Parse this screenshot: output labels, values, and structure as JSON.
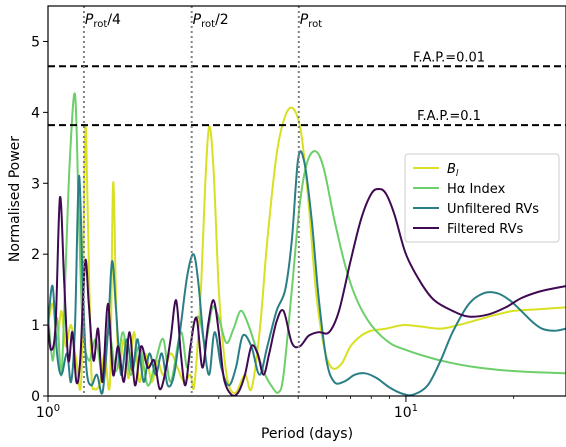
{
  "chart_data": {
    "type": "line",
    "xlabel": "Period (days)",
    "ylabel": "Normalised Power",
    "xscale": "log",
    "xlim": [
      1.0,
      28.0
    ],
    "ylim": [
      0,
      5.5
    ],
    "grid": false,
    "legend_position": "right",
    "x_major_ticks": [
      {
        "value": 1,
        "base": "10",
        "exp": "0"
      },
      {
        "value": 10,
        "base": "10",
        "exp": "1"
      }
    ],
    "y_ticks": [
      0,
      1,
      2,
      3,
      4,
      5
    ],
    "fap_lines": [
      {
        "label": "F.A.P.=0.01",
        "value": 4.65
      },
      {
        "label": "F.A.P.=0.1",
        "value": 3.82
      }
    ],
    "period_markers": [
      {
        "label_symbol": "P",
        "label_sub": "rot",
        "label_suffix": "/4",
        "value": 1.26
      },
      {
        "label_symbol": "P",
        "label_sub": "rot",
        "label_suffix": "/2",
        "value": 2.52
      },
      {
        "label_symbol": "P",
        "label_sub": "rot",
        "label_suffix": "",
        "value": 5.02
      }
    ],
    "series": [
      {
        "name": "B",
        "name_sub": "l",
        "color": "#d9e021",
        "points": [
          [
            1.0,
            1.0
          ],
          [
            1.03,
            1.3
          ],
          [
            1.06,
            0.8
          ],
          [
            1.09,
            1.2
          ],
          [
            1.12,
            0.7
          ],
          [
            1.16,
            1.0
          ],
          [
            1.2,
            0.5
          ],
          [
            1.24,
            0.3
          ],
          [
            1.27,
            3.7
          ],
          [
            1.29,
            2.7
          ],
          [
            1.32,
            0.4
          ],
          [
            1.35,
            0.1
          ],
          [
            1.4,
            0.2
          ],
          [
            1.44,
            0.6
          ],
          [
            1.49,
            0.2
          ],
          [
            1.52,
            3.0
          ],
          [
            1.55,
            1.3
          ],
          [
            1.58,
            0.4
          ],
          [
            1.63,
            0.8
          ],
          [
            1.68,
            0.25
          ],
          [
            1.74,
            0.9
          ],
          [
            1.8,
            0.2
          ],
          [
            1.87,
            0.6
          ],
          [
            1.95,
            0.2
          ],
          [
            2.02,
            0.5
          ],
          [
            2.1,
            0.3
          ],
          [
            2.2,
            0.6
          ],
          [
            2.3,
            0.4
          ],
          [
            2.4,
            0.2
          ],
          [
            2.5,
            0.3
          ],
          [
            2.55,
            0.1
          ],
          [
            2.6,
            0.5
          ],
          [
            2.68,
            1.6
          ],
          [
            2.75,
            3.0
          ],
          [
            2.82,
            3.8
          ],
          [
            2.9,
            3.2
          ],
          [
            3.0,
            1.5
          ],
          [
            3.1,
            0.6
          ],
          [
            3.2,
            0.15
          ],
          [
            3.35,
            0.05
          ],
          [
            3.55,
            0.3
          ],
          [
            3.7,
            0.1
          ],
          [
            3.9,
            0.9
          ],
          [
            4.1,
            2.2
          ],
          [
            4.35,
            3.4
          ],
          [
            4.6,
            3.95
          ],
          [
            4.85,
            4.05
          ],
          [
            5.1,
            3.7
          ],
          [
            5.35,
            2.7
          ],
          [
            5.6,
            1.5
          ],
          [
            5.9,
            0.7
          ],
          [
            6.2,
            0.4
          ],
          [
            6.6,
            0.45
          ],
          [
            7.0,
            0.7
          ],
          [
            7.5,
            0.85
          ],
          [
            8.0,
            0.92
          ],
          [
            8.8,
            0.95
          ],
          [
            9.8,
            1.0
          ],
          [
            11.0,
            0.98
          ],
          [
            12.5,
            0.95
          ],
          [
            14.0,
            1.0
          ],
          [
            16.0,
            1.08
          ],
          [
            18.0,
            1.15
          ],
          [
            20.0,
            1.2
          ],
          [
            23.0,
            1.22
          ],
          [
            26.0,
            1.24
          ],
          [
            28.0,
            1.25
          ]
        ]
      },
      {
        "name": "Hα Index",
        "color": "#6ccf6a",
        "points": [
          [
            1.0,
            1.2
          ],
          [
            1.03,
            0.5
          ],
          [
            1.06,
            1.1
          ],
          [
            1.09,
            0.3
          ],
          [
            1.12,
            1.8
          ],
          [
            1.15,
            3.3
          ],
          [
            1.19,
            4.25
          ],
          [
            1.22,
            2.5
          ],
          [
            1.25,
            1.0
          ],
          [
            1.3,
            0.5
          ],
          [
            1.36,
            0.8
          ],
          [
            1.42,
            0.3
          ],
          [
            1.48,
            0.9
          ],
          [
            1.55,
            0.35
          ],
          [
            1.62,
            0.9
          ],
          [
            1.7,
            0.3
          ],
          [
            1.8,
            0.7
          ],
          [
            1.9,
            0.15
          ],
          [
            2.0,
            0.5
          ],
          [
            2.1,
            0.8
          ],
          [
            2.2,
            0.2
          ],
          [
            2.35,
            0.9
          ],
          [
            2.45,
            0.4
          ],
          [
            2.55,
            1.0
          ],
          [
            2.65,
            1.1
          ],
          [
            2.75,
            0.75
          ],
          [
            2.88,
            1.25
          ],
          [
            3.0,
            1.1
          ],
          [
            3.15,
            0.75
          ],
          [
            3.3,
            0.95
          ],
          [
            3.45,
            1.2
          ],
          [
            3.6,
            1.05
          ],
          [
            3.8,
            0.7
          ],
          [
            4.0,
            0.35
          ],
          [
            4.2,
            0.15
          ],
          [
            4.4,
            0.05
          ],
          [
            4.55,
            0.3
          ],
          [
            4.8,
            1.5
          ],
          [
            5.05,
            2.7
          ],
          [
            5.3,
            3.3
          ],
          [
            5.6,
            3.45
          ],
          [
            5.9,
            3.2
          ],
          [
            6.3,
            2.5
          ],
          [
            6.8,
            1.8
          ],
          [
            7.3,
            1.35
          ],
          [
            8.0,
            1.0
          ],
          [
            9.0,
            0.75
          ],
          [
            10.0,
            0.65
          ],
          [
            11.5,
            0.55
          ],
          [
            13.0,
            0.48
          ],
          [
            15.0,
            0.42
          ],
          [
            18.0,
            0.37
          ],
          [
            22.0,
            0.34
          ],
          [
            28.0,
            0.32
          ]
        ]
      },
      {
        "name": "Unfiltered RVs",
        "color": "#2a7f86",
        "points": [
          [
            1.0,
            1.0
          ],
          [
            1.03,
            1.55
          ],
          [
            1.06,
            0.6
          ],
          [
            1.09,
            0.3
          ],
          [
            1.13,
            0.6
          ],
          [
            1.16,
            0.2
          ],
          [
            1.19,
            1.0
          ],
          [
            1.22,
            3.1
          ],
          [
            1.25,
            1.6
          ],
          [
            1.28,
            0.4
          ],
          [
            1.32,
            0.15
          ],
          [
            1.37,
            0.3
          ],
          [
            1.42,
            0.05
          ],
          [
            1.47,
            0.9
          ],
          [
            1.51,
            1.9
          ],
          [
            1.55,
            1.2
          ],
          [
            1.6,
            0.3
          ],
          [
            1.66,
            0.8
          ],
          [
            1.72,
            0.35
          ],
          [
            1.78,
            0.8
          ],
          [
            1.85,
            0.2
          ],
          [
            1.92,
            0.6
          ],
          [
            2.0,
            0.3
          ],
          [
            2.08,
            0.6
          ],
          [
            2.16,
            0.15
          ],
          [
            2.25,
            0.3
          ],
          [
            2.35,
            1.0
          ],
          [
            2.45,
            1.7
          ],
          [
            2.55,
            2.0
          ],
          [
            2.63,
            1.6
          ],
          [
            2.72,
            0.8
          ],
          [
            2.82,
            0.3
          ],
          [
            2.92,
            0.9
          ],
          [
            3.05,
            0.4
          ],
          [
            3.2,
            0.15
          ],
          [
            3.35,
            0.4
          ],
          [
            3.5,
            0.85
          ],
          [
            3.7,
            0.7
          ],
          [
            3.9,
            0.3
          ],
          [
            4.1,
            0.7
          ],
          [
            4.35,
            1.2
          ],
          [
            4.6,
            1.5
          ],
          [
            4.8,
            2.2
          ],
          [
            5.0,
            3.35
          ],
          [
            5.2,
            3.3
          ],
          [
            5.45,
            2.5
          ],
          [
            5.7,
            1.4
          ],
          [
            6.0,
            0.5
          ],
          [
            6.3,
            0.2
          ],
          [
            6.7,
            0.2
          ],
          [
            7.2,
            0.3
          ],
          [
            7.7,
            0.32
          ],
          [
            8.3,
            0.25
          ],
          [
            9.0,
            0.12
          ],
          [
            9.8,
            0.03
          ],
          [
            10.5,
            0.02
          ],
          [
            11.5,
            0.15
          ],
          [
            12.5,
            0.5
          ],
          [
            13.5,
            0.9
          ],
          [
            15.0,
            1.3
          ],
          [
            16.5,
            1.45
          ],
          [
            18.0,
            1.45
          ],
          [
            19.5,
            1.35
          ],
          [
            21.0,
            1.2
          ],
          [
            22.5,
            1.05
          ],
          [
            24.0,
            0.95
          ],
          [
            26.0,
            0.92
          ],
          [
            28.0,
            0.95
          ]
        ]
      },
      {
        "name": "Filtered RVs",
        "color": "#3f0a52",
        "points": [
          [
            1.0,
            1.0
          ],
          [
            1.02,
            0.65
          ],
          [
            1.05,
            1.0
          ],
          [
            1.08,
            2.8
          ],
          [
            1.11,
            1.6
          ],
          [
            1.14,
            0.5
          ],
          [
            1.17,
            0.9
          ],
          [
            1.2,
            0.2
          ],
          [
            1.23,
            0.5
          ],
          [
            1.27,
            1.9
          ],
          [
            1.3,
            1.3
          ],
          [
            1.34,
            0.5
          ],
          [
            1.38,
            0.95
          ],
          [
            1.42,
            0.2
          ],
          [
            1.47,
            1.3
          ],
          [
            1.52,
            0.3
          ],
          [
            1.57,
            0.7
          ],
          [
            1.63,
            0.2
          ],
          [
            1.69,
            0.9
          ],
          [
            1.75,
            0.15
          ],
          [
            1.82,
            0.7
          ],
          [
            1.9,
            0.4
          ],
          [
            1.98,
            0.5
          ],
          [
            2.05,
            0.1
          ],
          [
            2.12,
            0.3
          ],
          [
            2.2,
            0.8
          ],
          [
            2.28,
            1.35
          ],
          [
            2.35,
            0.6
          ],
          [
            2.42,
            0.15
          ],
          [
            2.5,
            0.7
          ],
          [
            2.6,
            1.1
          ],
          [
            2.7,
            0.4
          ],
          [
            2.8,
            1.0
          ],
          [
            2.9,
            1.35
          ],
          [
            3.0,
            0.9
          ],
          [
            3.1,
            0.25
          ],
          [
            3.25,
            0.02
          ],
          [
            3.4,
            0.05
          ],
          [
            3.55,
            0.3
          ],
          [
            3.7,
            0.7
          ],
          [
            3.85,
            0.6
          ],
          [
            4.0,
            0.3
          ],
          [
            4.15,
            0.6
          ],
          [
            4.35,
            1.05
          ],
          [
            4.55,
            1.2
          ],
          [
            4.8,
            0.75
          ],
          [
            5.05,
            0.7
          ],
          [
            5.35,
            0.85
          ],
          [
            5.7,
            0.9
          ],
          [
            6.1,
            0.9
          ],
          [
            6.5,
            1.2
          ],
          [
            7.0,
            1.9
          ],
          [
            7.5,
            2.5
          ],
          [
            8.0,
            2.85
          ],
          [
            8.4,
            2.92
          ],
          [
            8.8,
            2.85
          ],
          [
            9.3,
            2.55
          ],
          [
            10.0,
            2.0
          ],
          [
            11.0,
            1.6
          ],
          [
            12.0,
            1.35
          ],
          [
            13.5,
            1.2
          ],
          [
            15.0,
            1.12
          ],
          [
            17.0,
            1.15
          ],
          [
            19.0,
            1.25
          ],
          [
            21.0,
            1.38
          ],
          [
            23.5,
            1.47
          ],
          [
            26.0,
            1.52
          ],
          [
            28.0,
            1.55
          ]
        ]
      }
    ]
  }
}
